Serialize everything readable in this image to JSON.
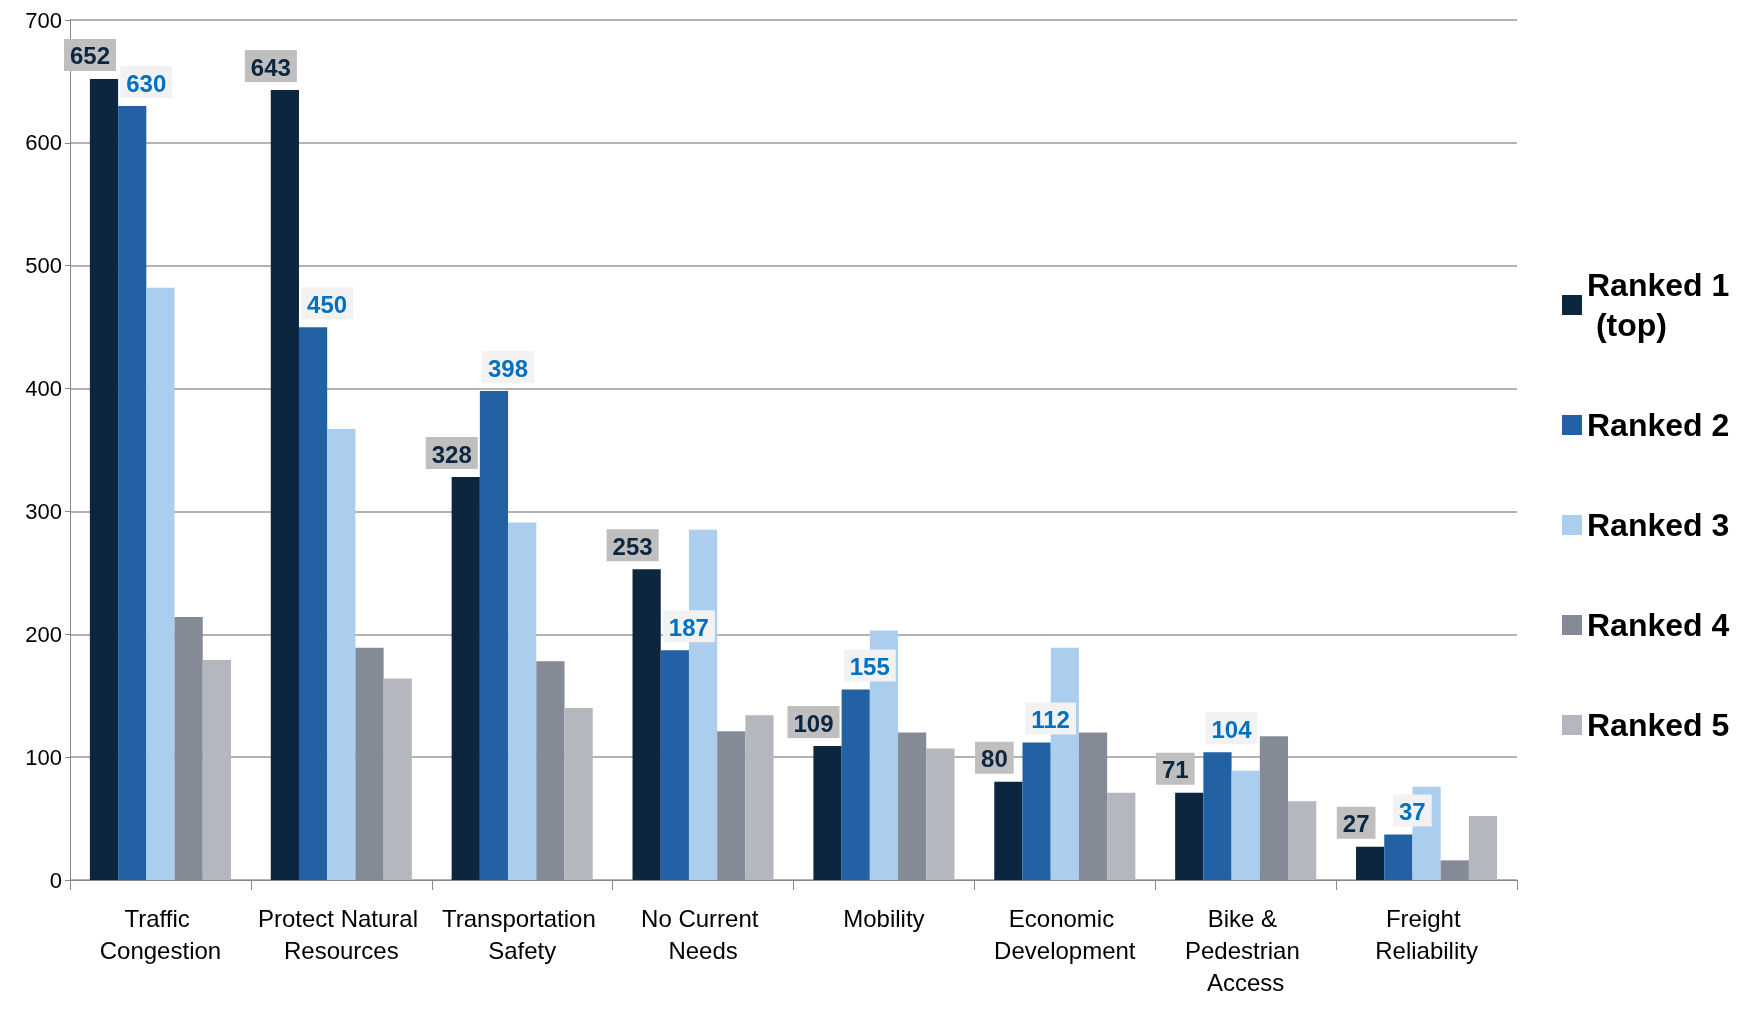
{
  "chart_data": {
    "type": "bar",
    "categories": [
      "Traffic Congestion",
      "Protect Natural Resources",
      "Transportation Safety",
      "No Current Needs",
      "Mobility",
      "Economic Development",
      "Bike & Pedestrian Access",
      "Freight Reliability"
    ],
    "series": [
      {
        "name": "Ranked 1 (top)",
        "color": "#0d2640",
        "values": [
          652,
          643,
          328,
          253,
          109,
          80,
          71,
          27
        ],
        "value_labels": [
          "652",
          "643",
          "328",
          "253",
          "109",
          "80",
          "71",
          "27"
        ]
      },
      {
        "name": "Ranked 2",
        "color": "#2262a4",
        "values": [
          630,
          450,
          398,
          187,
          155,
          112,
          104,
          37
        ],
        "value_labels": [
          "630",
          "450",
          "398",
          "187",
          "155",
          "112",
          "104",
          "37"
        ]
      },
      {
        "name": "Ranked 3",
        "color": "#abcdee",
        "values": [
          482,
          367,
          291,
          285,
          203,
          189,
          89,
          76
        ]
      },
      {
        "name": "Ranked 4",
        "color": "#858b96",
        "values": [
          214,
          189,
          178,
          121,
          120,
          120,
          117,
          16
        ]
      },
      {
        "name": "Ranked 5",
        "color": "#b4b7be",
        "values": [
          179,
          164,
          140,
          134,
          107,
          71,
          64,
          52
        ]
      }
    ],
    "ylim": [
      0,
      700
    ],
    "yticks": [
      0,
      100,
      200,
      300,
      400,
      500,
      600,
      700
    ],
    "grid": "y",
    "legend": "right"
  }
}
